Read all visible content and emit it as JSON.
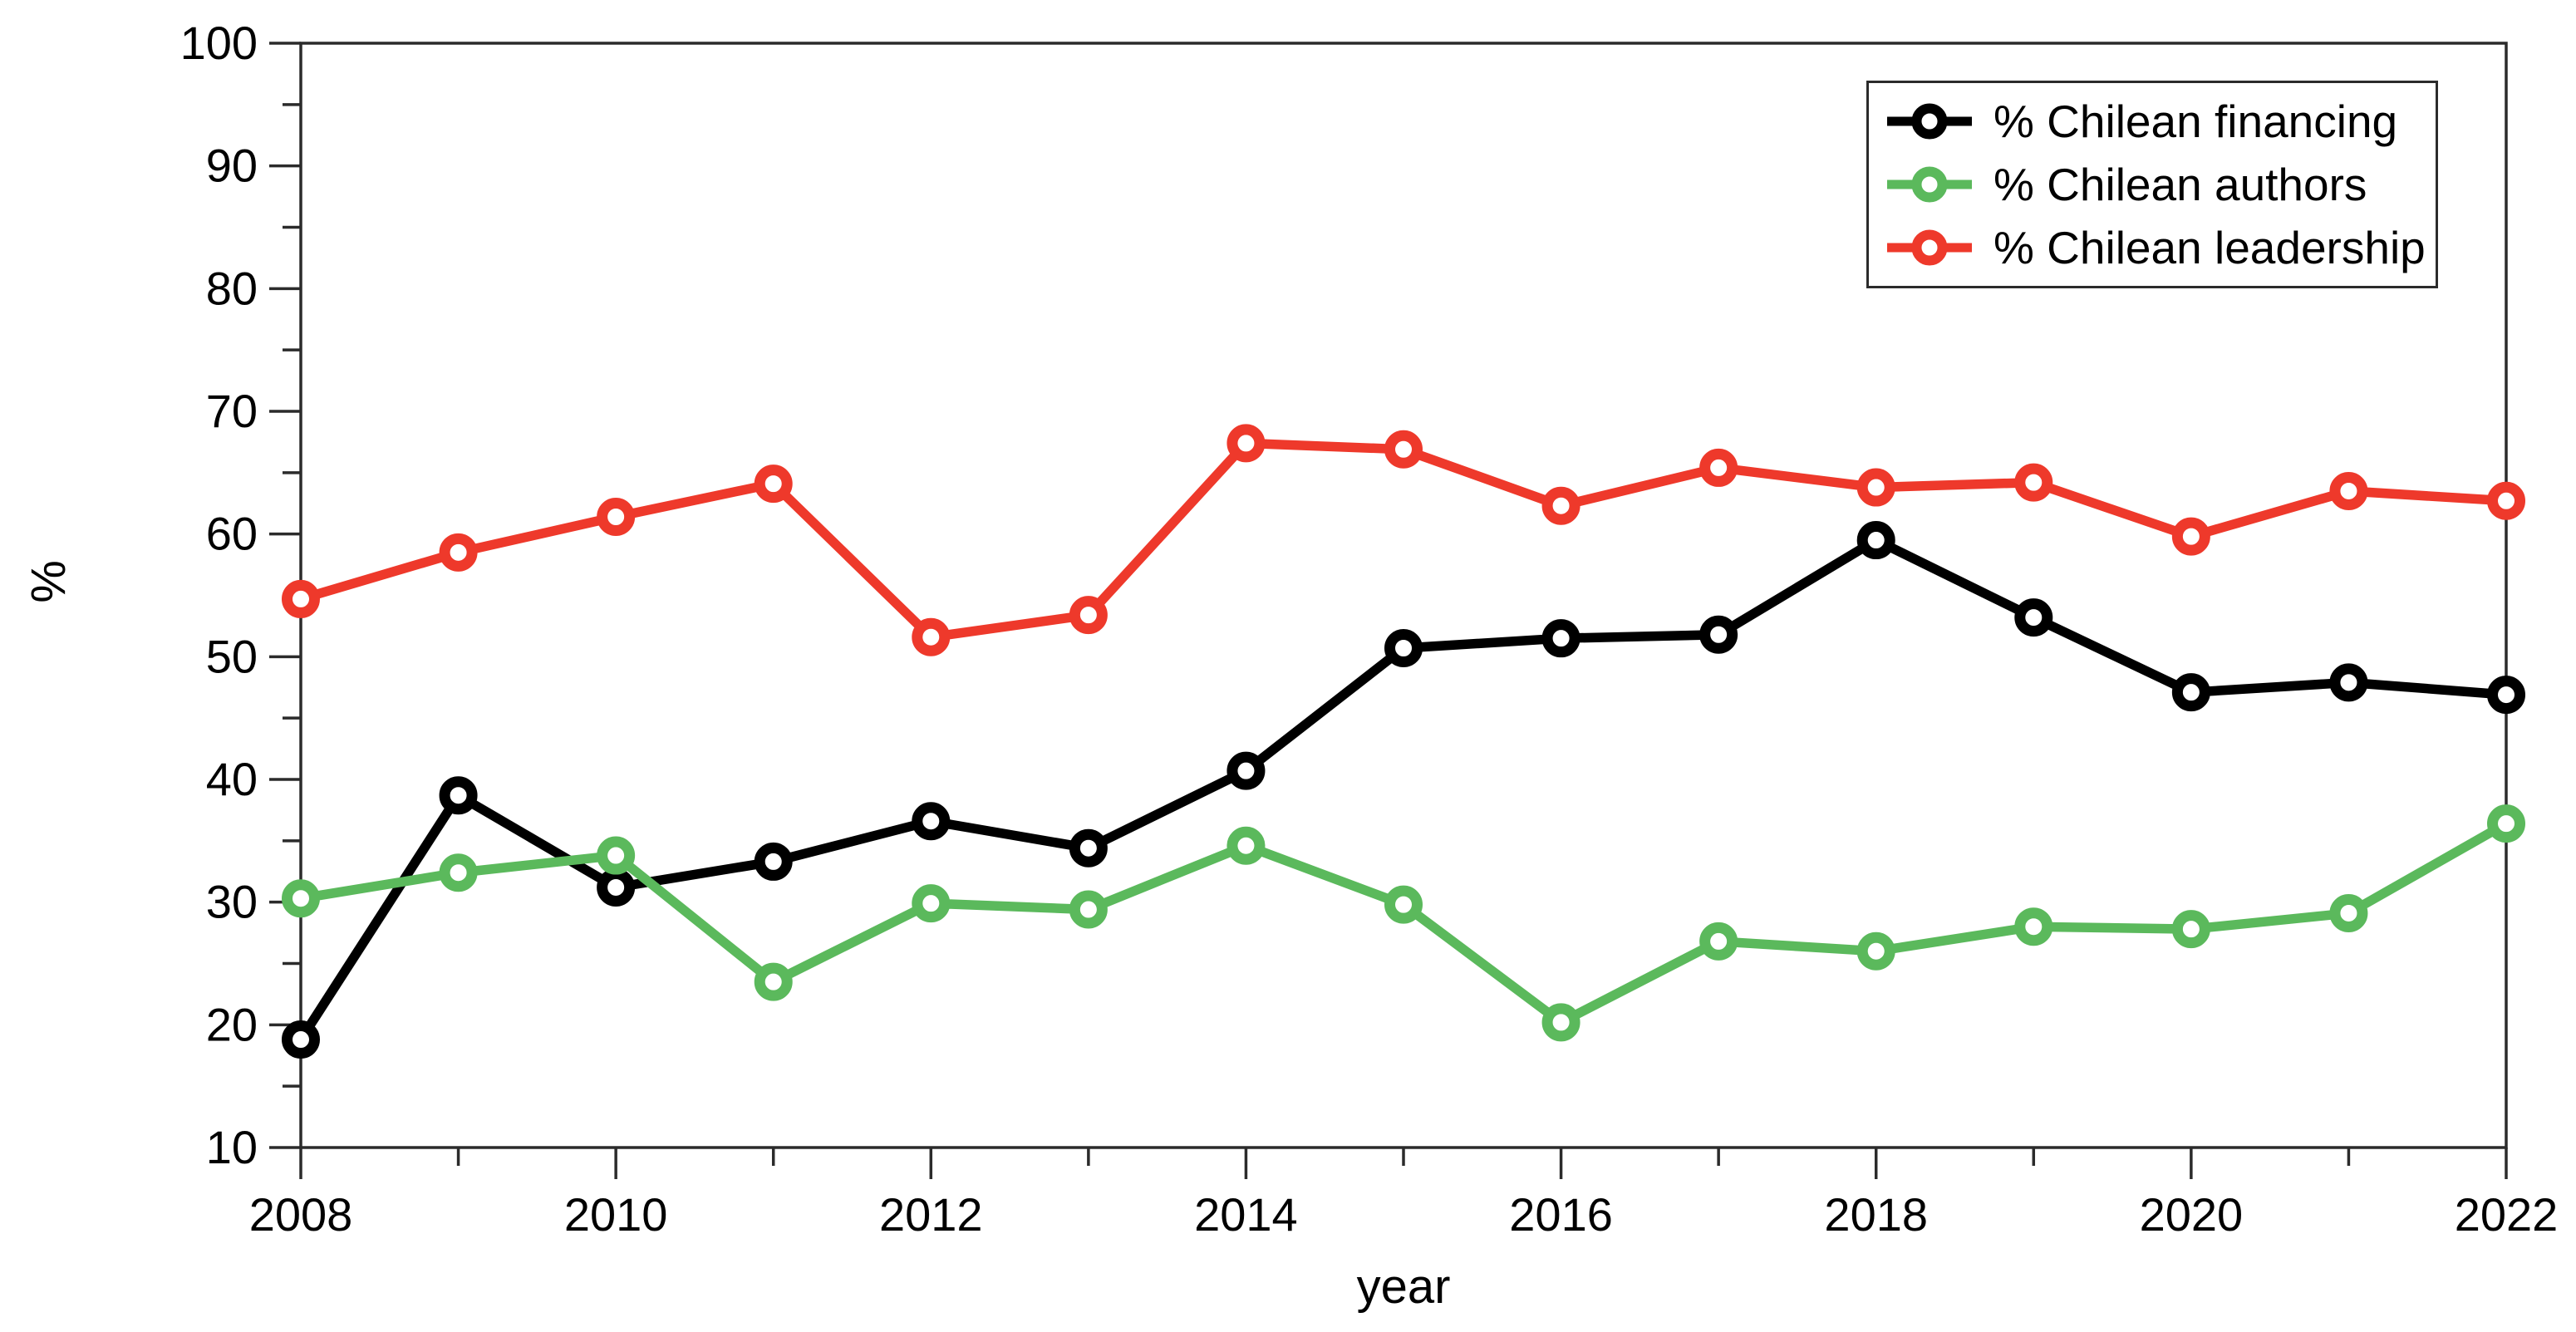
{
  "chart_data": {
    "type": "line",
    "x": [
      2008,
      2009,
      2010,
      2011,
      2012,
      2013,
      2014,
      2015,
      2016,
      2017,
      2018,
      2019,
      2020,
      2021,
      2022
    ],
    "series": [
      {
        "name": "% Chilean financing",
        "color": "#000000",
        "values": [
          18.8,
          38.7,
          31.2,
          33.3,
          36.6,
          34.4,
          40.7,
          50.7,
          51.5,
          51.8,
          59.5,
          53.2,
          47.1,
          47.9,
          46.9
        ]
      },
      {
        "name": "% Chilean authors",
        "color": "#5BB95C",
        "values": [
          30.3,
          32.4,
          33.8,
          23.5,
          29.9,
          29.4,
          34.6,
          29.8,
          20.2,
          26.8,
          26.0,
          28.0,
          27.8,
          29.1,
          36.4
        ]
      },
      {
        "name": "% Chilean leadership",
        "color": "#EE392B",
        "values": [
          54.7,
          58.5,
          61.4,
          64.1,
          51.6,
          53.4,
          67.4,
          66.9,
          62.3,
          65.4,
          63.8,
          64.2,
          59.8,
          63.5,
          62.7
        ]
      }
    ],
    "xlabel": "year",
    "ylabel": "%",
    "xlim": [
      2008,
      2022
    ],
    "ylim": [
      10,
      100
    ],
    "y_label_step": 10,
    "y_minor_tick_step": 5,
    "x_label_step": 2,
    "x_minor_tick_step": 1,
    "grid": false,
    "marker": "open-circle",
    "legend_position": "top-right",
    "axis_color": "#2b2b2b",
    "background": "#ffffff"
  }
}
